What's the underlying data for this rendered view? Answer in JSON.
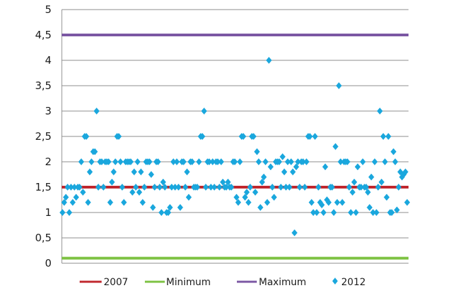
{
  "chart_data": {
    "type": "scatter",
    "ylim": [
      0,
      5
    ],
    "yticks": [
      "0",
      "0,5",
      "1",
      "1,5",
      "2",
      "2,5",
      "3",
      "3,5",
      "4",
      "4,5",
      "5"
    ],
    "grid": true,
    "legend_position": "bottom",
    "reference_lines": [
      {
        "name": "2007",
        "value": 1.5,
        "color": "#c0272d"
      },
      {
        "name": "Minimum",
        "value": 0.1,
        "color": "#7dc242"
      },
      {
        "name": "Maximum",
        "value": 4.5,
        "color": "#7b57a3"
      }
    ],
    "series": [
      {
        "name": "2012",
        "color": "#1aa7dd",
        "marker": "diamond",
        "values": [
          1,
          1.2,
          1.3,
          1.5,
          1,
          1.5,
          1.2,
          1.5,
          1.3,
          1.5,
          1.5,
          2,
          1.4,
          2.5,
          2.5,
          1.2,
          1.8,
          2,
          2.2,
          2.2,
          3,
          1.5,
          2,
          2,
          1.5,
          2,
          2,
          2,
          1.2,
          1.6,
          1.8,
          2,
          2.5,
          2.5,
          2,
          1.5,
          1.2,
          2,
          2,
          2,
          2,
          1.4,
          1.8,
          1.5,
          2,
          1.4,
          1.8,
          1.2,
          1.5,
          2,
          2,
          2,
          1.75,
          1.1,
          1.5,
          2,
          2,
          1.5,
          1,
          1.6,
          1.5,
          1,
          1,
          1.1,
          1.5,
          2,
          1.5,
          2,
          1.5,
          1.1,
          2,
          2,
          1.5,
          1.8,
          1.3,
          2,
          2,
          1.5,
          1.5,
          1.5,
          2,
          2.5,
          2.5,
          3,
          1.5,
          2,
          2,
          1.5,
          2,
          1.5,
          2,
          2,
          1.5,
          2,
          1.6,
          1.5,
          1.5,
          1.6,
          1.5,
          1.5,
          2,
          2,
          1.3,
          1.2,
          2,
          2.5,
          2.5,
          1.3,
          1.4,
          1.2,
          1.5,
          2.5,
          2.5,
          1.4,
          2.2,
          2,
          1.1,
          1.6,
          1.7,
          2,
          1.2,
          4,
          1.9,
          1.5,
          1.3,
          2,
          2,
          2,
          1.5,
          2.1,
          1.8,
          1.5,
          2,
          1.5,
          2,
          1.8,
          0.6,
          1.9,
          2,
          1.5,
          2,
          2,
          1.5,
          2,
          2.5,
          2.5,
          1.2,
          1,
          2.5,
          1,
          1.5,
          1.2,
          1.15,
          1,
          1.9,
          1.25,
          1.2,
          1.5,
          1.5,
          1,
          2.3,
          1.2,
          3.5,
          2,
          1.2,
          2,
          2,
          2,
          1.5,
          1,
          1.4,
          1.6,
          1,
          1.9,
          1.5,
          1.5,
          2,
          1.5,
          1.5,
          1.4,
          1.1,
          1.7,
          1,
          2,
          1,
          1.5,
          3,
          1.6,
          2.5,
          2,
          1.3,
          2.5,
          1,
          1,
          2.2,
          2,
          1.05,
          1.5,
          1.8,
          1.7,
          1.75,
          1.8,
          1.2
        ]
      }
    ]
  }
}
